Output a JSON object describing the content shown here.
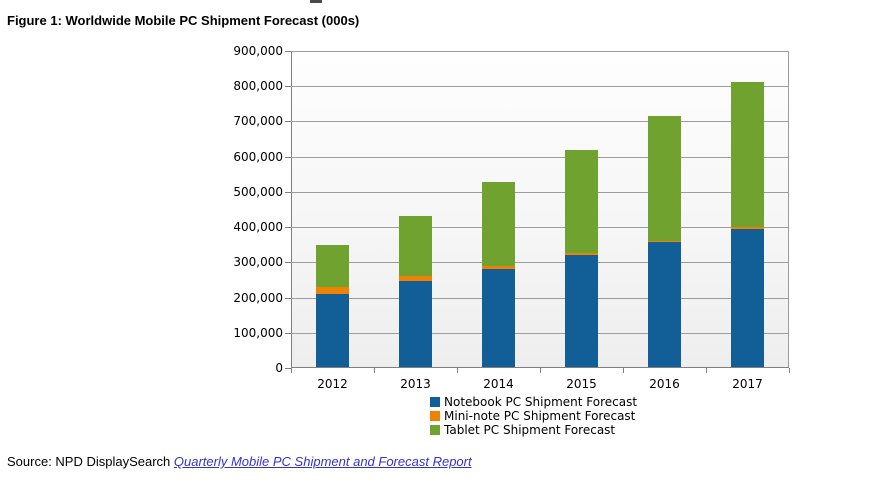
{
  "title": "Figure 1: Worldwide Mobile PC Shipment Forecast (000s)",
  "source": {
    "prefix": "Source: NPD DisplaySearch ",
    "link": "Quarterly Mobile PC Shipment and Forecast Report"
  },
  "colors": {
    "notebook_blue": "#115F96",
    "mini_note_orange": "#EE8100",
    "tablet_green": "#6FA22E",
    "gridline_gray": "#9C9C9C",
    "axis_gray": "#7F7F7F",
    "link_blue": "#3333CC"
  },
  "chart_data": {
    "type": "bar",
    "stacked": true,
    "title": "",
    "xlabel": "",
    "ylabel": "",
    "categories": [
      "2012",
      "2013",
      "2014",
      "2015",
      "2016",
      "2017"
    ],
    "series": [
      {
        "key": "notebook-pc",
        "name": "Notebook PC Shipment Forecast",
        "color": "#115F96",
        "values": [
          208000,
          245000,
          278000,
          318000,
          355000,
          393000
        ]
      },
      {
        "key": "mini-note-pc",
        "name": "Mini-note PC Shipment Forecast",
        "color": "#EE8100",
        "values": [
          18000,
          14000,
          9000,
          7000,
          2000,
          4000
        ]
      },
      {
        "key": "tablet-pc",
        "name": "Tablet PC Shipment Forecast",
        "color": "#6FA22E",
        "values": [
          121000,
          170000,
          237000,
          290000,
          356000,
          412000
        ]
      }
    ],
    "totals": [
      347000,
      429000,
      524000,
      615000,
      713000,
      809000
    ],
    "ylim": [
      0,
      900000
    ],
    "ytick_values": [
      0,
      100000,
      200000,
      300000,
      400000,
      500000,
      600000,
      700000,
      800000,
      900000
    ],
    "ytick_labels": [
      "0",
      "100,000",
      "200,000",
      "300,000",
      "400,000",
      "500,000",
      "600,000",
      "700,000",
      "800,000",
      "900,000"
    ],
    "grid": true,
    "legend_position": "bottom"
  }
}
